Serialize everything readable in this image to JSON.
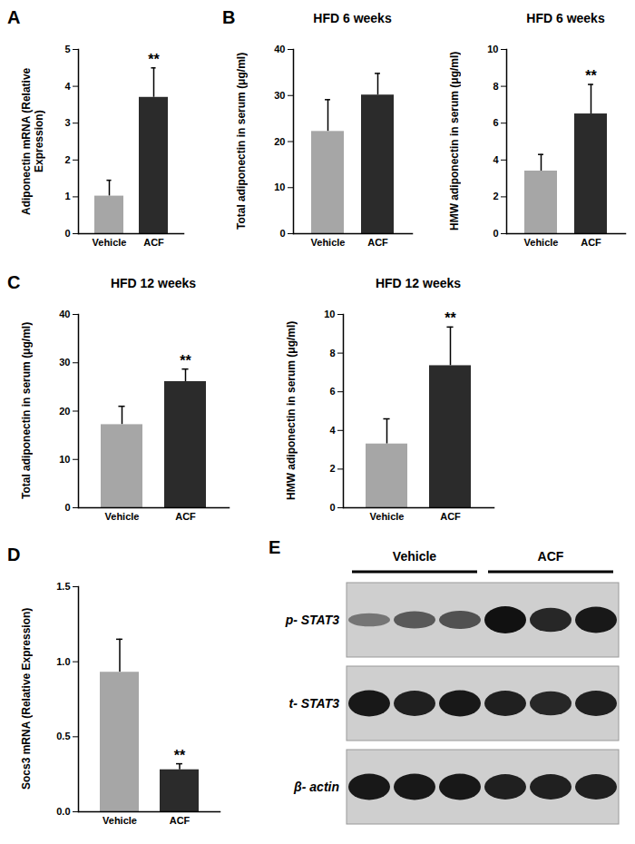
{
  "chart_data": [
    {
      "panel": "A",
      "type": "bar",
      "y_label": "Adiponectin mRNA (Relative Expression)",
      "categories": [
        "Vehicle",
        "ACF"
      ],
      "values": [
        1.02,
        3.7
      ],
      "errors": [
        0.43,
        0.8
      ],
      "colors": [
        "#a6a6a6",
        "#2b2b2b"
      ],
      "ylim": [
        0,
        5
      ],
      "yticks": [
        0,
        1,
        2,
        3,
        4,
        5
      ],
      "annotations": [
        {
          "category": "ACF",
          "text": "**"
        }
      ]
    },
    {
      "panel": "B",
      "type": "bar",
      "title": "HFD 6 weeks",
      "y_label": "Total adiponectin in serum (μg/ml)",
      "categories": [
        "Vehicle",
        "ACF"
      ],
      "values": [
        22.2,
        30.1
      ],
      "errors": [
        6.9,
        4.7
      ],
      "colors": [
        "#a6a6a6",
        "#2b2b2b"
      ],
      "ylim": [
        0,
        40
      ],
      "yticks": [
        0,
        10,
        20,
        30,
        40
      ],
      "annotations": []
    },
    {
      "type": "bar",
      "title": "HFD 6 weeks",
      "y_label": "HMW adiponectin in serum (μg/ml)",
      "categories": [
        "Vehicle",
        "ACF"
      ],
      "values": [
        3.4,
        6.5
      ],
      "errors": [
        0.9,
        1.6
      ],
      "colors": [
        "#a6a6a6",
        "#2b2b2b"
      ],
      "ylim": [
        0,
        10
      ],
      "yticks": [
        0,
        2,
        4,
        6,
        8,
        10
      ],
      "annotations": [
        {
          "category": "ACF",
          "text": "**"
        }
      ]
    },
    {
      "panel": "C",
      "type": "bar",
      "title": "HFD 12 weeks",
      "y_label": "Total adiponectin in serum (μg/ml)",
      "categories": [
        "Vehicle",
        "ACF"
      ],
      "values": [
        17.2,
        26.1
      ],
      "errors": [
        3.8,
        2.6
      ],
      "colors": [
        "#a6a6a6",
        "#2b2b2b"
      ],
      "ylim": [
        0,
        40
      ],
      "yticks": [
        0,
        10,
        20,
        30,
        40
      ],
      "annotations": [
        {
          "category": "ACF",
          "text": "**"
        }
      ]
    },
    {
      "type": "bar",
      "title": "HFD 12 weeks",
      "y_label": "HMW adiponectin in serum (μg/ml)",
      "categories": [
        "Vehicle",
        "ACF"
      ],
      "values": [
        3.3,
        7.35
      ],
      "errors": [
        1.3,
        2.0
      ],
      "colors": [
        "#a6a6a6",
        "#2b2b2b"
      ],
      "ylim": [
        0,
        10
      ],
      "yticks": [
        0,
        2,
        4,
        6,
        8,
        10
      ],
      "annotations": [
        {
          "category": "ACF",
          "text": "**"
        }
      ]
    },
    {
      "panel": "D",
      "type": "bar",
      "y_label": "Socs3 mRNA (Relative Expression)",
      "categories": [
        "Vehicle",
        "ACF"
      ],
      "values": [
        0.93,
        0.28
      ],
      "errors": [
        0.22,
        0.04
      ],
      "colors": [
        "#a6a6a6",
        "#2b2b2b"
      ],
      "ylim": [
        0,
        1.5
      ],
      "yticks": [
        {
          "value": 0,
          "label": "0.0"
        },
        0.5,
        {
          "value": 1,
          "label": "1.0"
        },
        1.5
      ],
      "annotations": [
        {
          "category": "ACF",
          "text": "**"
        }
      ]
    }
  ],
  "blot": {
    "panel": "E",
    "groups": [
      {
        "name": "Vehicle",
        "lanes": 3
      },
      {
        "name": "ACF",
        "lanes": 3
      }
    ],
    "rows": [
      {
        "label": "p- STAT3",
        "intensity": [
          0.3,
          0.5,
          0.55,
          1.0,
          0.85,
          0.95
        ]
      },
      {
        "label": "t- STAT3",
        "intensity": [
          0.95,
          0.9,
          0.95,
          0.9,
          0.85,
          0.9
        ]
      },
      {
        "label": "β- actin",
        "intensity": [
          0.95,
          0.95,
          0.95,
          0.9,
          0.9,
          0.9
        ]
      }
    ]
  }
}
